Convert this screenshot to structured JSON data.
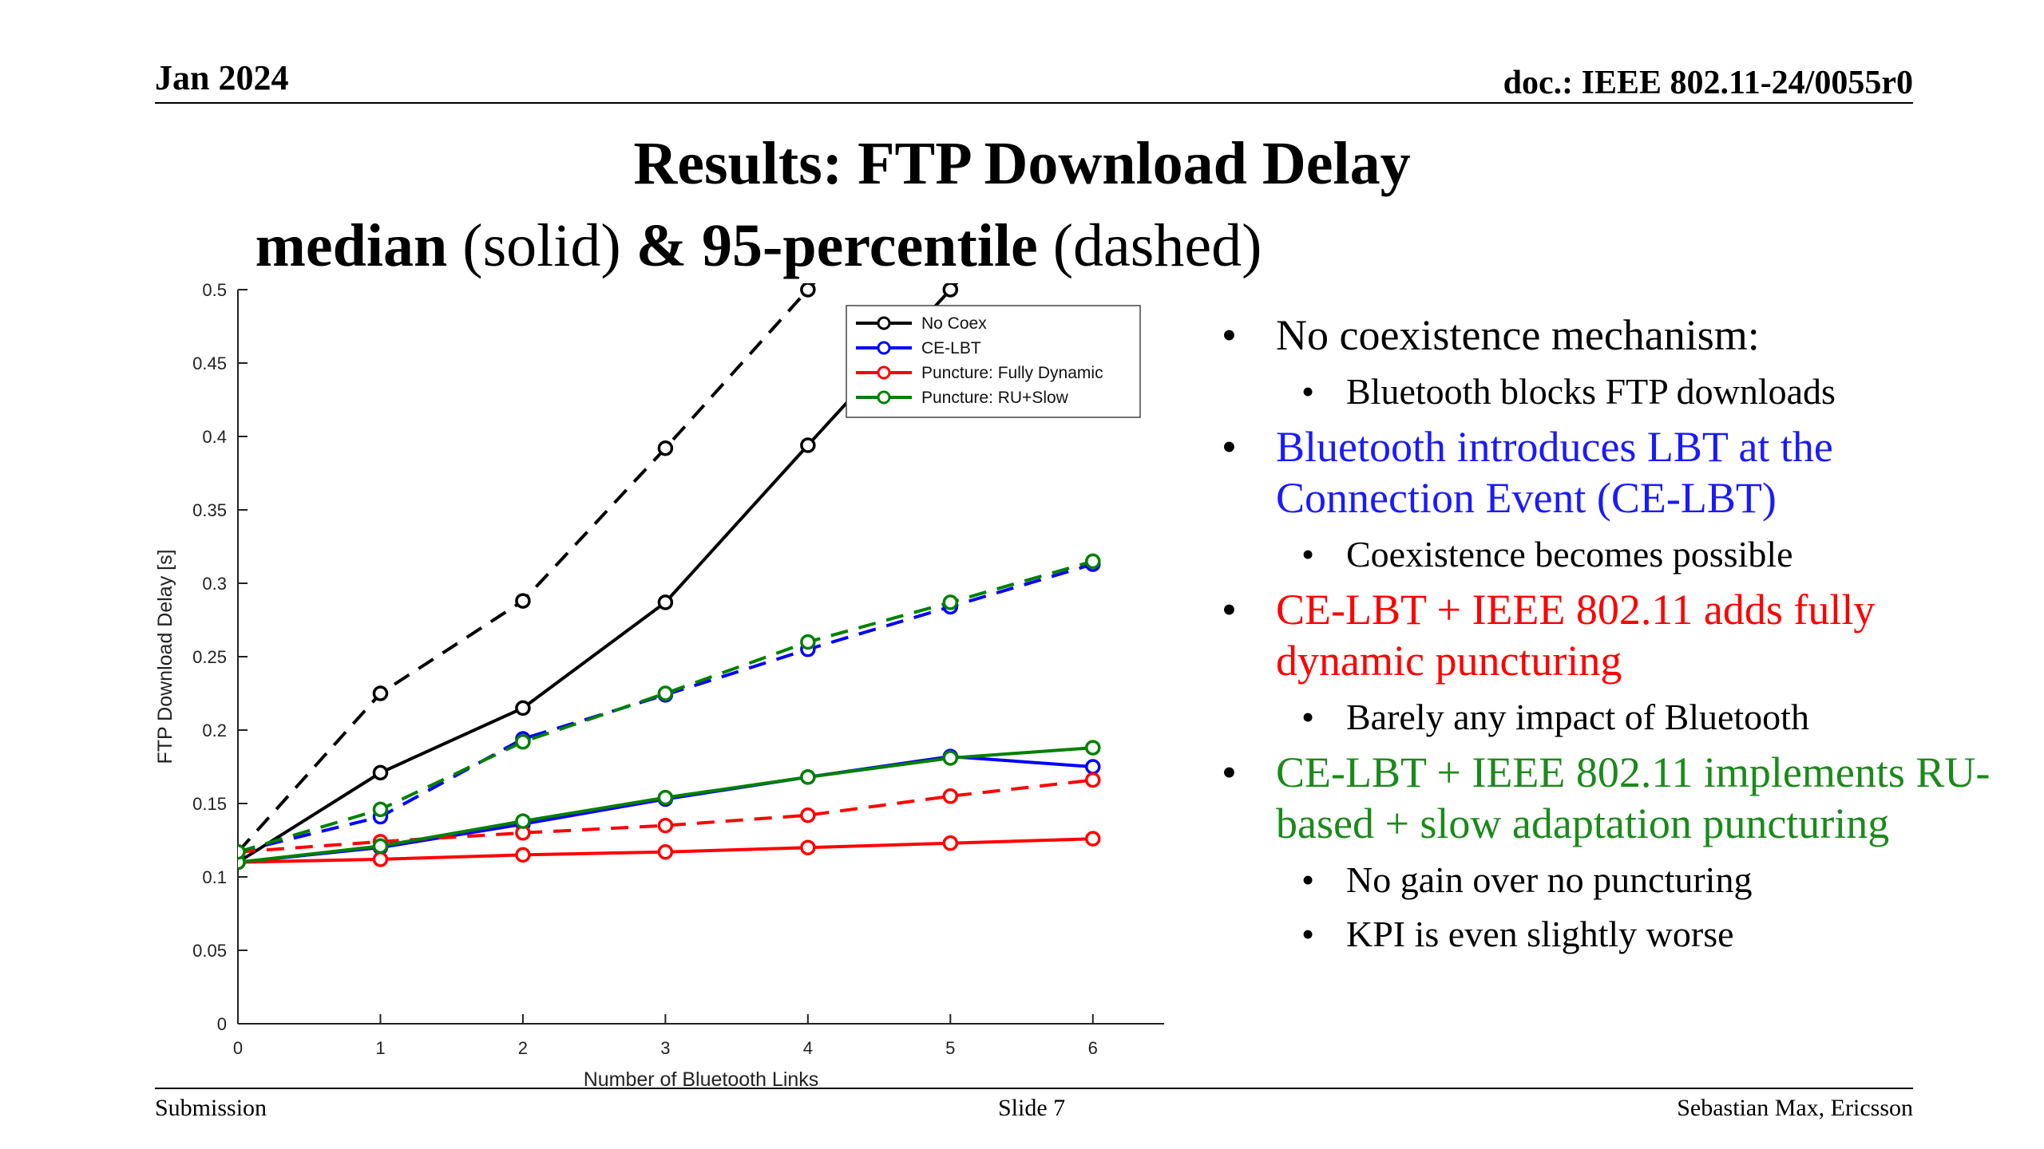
{
  "header": {
    "date": "Jan 2024",
    "doc": "doc.: IEEE 802.11-24/0055r0"
  },
  "title": {
    "line1": "Results: FTP Download Delay",
    "line2_a": "median",
    "line2_b": " (solid) ",
    "line2_c": "& 95-percentile",
    "line2_d": " (dashed)"
  },
  "bullets": [
    {
      "text": "No coexistence mechanism:",
      "color": "#000000",
      "sub": [
        "Bluetooth blocks FTP downloads"
      ]
    },
    {
      "text": "Bluetooth introduces LBT at the Connection Event (CE-LBT)",
      "color": "#1a1aff",
      "sub": [
        "Coexistence becomes possible"
      ]
    },
    {
      "text": "CE-LBT + IEEE 802.11 adds fully dynamic puncturing",
      "color": "#ff0000",
      "sub": [
        "Barely any impact of Bluetooth"
      ]
    },
    {
      "text": "CE-LBT + IEEE 802.11 implements RU-based + slow adaptation puncturing",
      "color": "#1a8a1a",
      "sub": [
        "No gain over no puncturing",
        "KPI is even slightly worse"
      ]
    }
  ],
  "footer": {
    "left": "Submission",
    "center": "Slide 7",
    "right": "Sebastian Max, Ericsson"
  },
  "chart_data": {
    "type": "line",
    "xlabel": "Number of Bluetooth Links",
    "ylabel": "FTP Download Delay [s]",
    "xlim": [
      0,
      6.5
    ],
    "ylim": [
      0,
      0.5
    ],
    "xticks": [
      0,
      1,
      2,
      3,
      4,
      5,
      6
    ],
    "yticks": [
      0,
      0.05,
      0.1,
      0.15,
      0.2,
      0.25,
      0.3,
      0.35,
      0.4,
      0.45,
      0.5
    ],
    "yticklabels": [
      "0",
      "0.05",
      "0.1",
      "0.15",
      "0.2",
      "0.25",
      "0.3",
      "0.35",
      "0.4",
      "0.45",
      "0.5"
    ],
    "x": [
      0,
      1,
      2,
      3,
      4,
      5,
      6
    ],
    "legend_position": "top-right",
    "series": [
      {
        "name": "No Coex",
        "color": "#000000",
        "median": [
          0.11,
          0.171,
          0.215,
          0.287,
          0.394,
          0.5,
          null
        ],
        "p95": [
          0.117,
          0.225,
          0.288,
          0.392,
          0.5,
          null,
          null
        ]
      },
      {
        "name": "CE-LBT",
        "color": "#0000ff",
        "median": [
          0.11,
          0.12,
          0.136,
          0.153,
          0.168,
          0.182,
          0.175
        ],
        "p95": [
          0.117,
          0.141,
          0.194,
          0.224,
          0.255,
          0.284,
          0.313
        ]
      },
      {
        "name": "Puncture: Fully Dynamic",
        "color": "#ff0000",
        "median": [
          0.11,
          0.112,
          0.115,
          0.117,
          0.12,
          0.123,
          0.126
        ],
        "p95": [
          0.117,
          0.124,
          0.13,
          0.135,
          0.142,
          0.155,
          0.166
        ]
      },
      {
        "name": "Puncture: RU+Slow",
        "color": "#008000",
        "median": [
          0.11,
          0.121,
          0.138,
          0.154,
          0.168,
          0.181,
          0.188
        ],
        "p95": [
          0.117,
          0.146,
          0.192,
          0.225,
          0.26,
          0.287,
          0.315
        ]
      }
    ]
  }
}
